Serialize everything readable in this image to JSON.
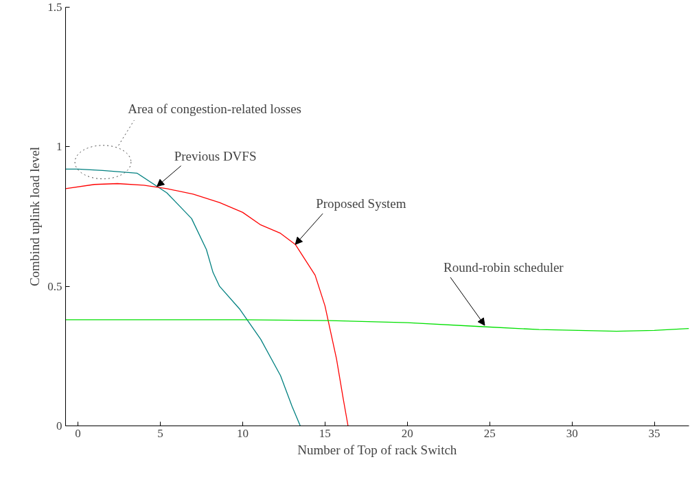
{
  "chart_data": {
    "type": "line",
    "xlabel": "Number of Top of rack Switch",
    "ylabel": "Combind uplink load level",
    "xlim": [
      -0.75,
      37.1
    ],
    "ylim": [
      0,
      1.5
    ],
    "xticks": [
      0,
      5,
      10,
      15,
      20,
      25,
      30,
      35
    ],
    "yticks": [
      0,
      0.5,
      1,
      1.5
    ],
    "grid": false,
    "marker": "none",
    "line_style": "solid",
    "series": [
      {
        "x": [
          -0.75,
          0,
          1.5,
          3.6,
          5.4,
          6.9,
          7.8,
          8.2,
          8.6,
          9.8,
          11.1,
          12.3,
          13,
          13.5
        ],
        "values": [
          0.92,
          0.92,
          0.915,
          0.905,
          0.835,
          0.743,
          0.632,
          0.55,
          0.5,
          0.42,
          0.31,
          0.18,
          0.07,
          0
        ],
        "color": "#008080"
      },
      {
        "x": [
          -0.75,
          1,
          2.4,
          4,
          5.4,
          7,
          8.6,
          10,
          11.1,
          12.3,
          13.2,
          14.4,
          15,
          15.7,
          16.1,
          16.4
        ],
        "values": [
          0.85,
          0.865,
          0.868,
          0.862,
          0.85,
          0.83,
          0.8,
          0.765,
          0.72,
          0.69,
          0.65,
          0.54,
          0.43,
          0.24,
          0.1,
          0
        ],
        "color": "#ff0000"
      },
      {
        "x": [
          -0.75,
          5,
          10,
          15.3,
          20,
          24.4,
          28,
          32.7,
          35,
          37.1
        ],
        "values": [
          0.38,
          0.38,
          0.38,
          0.377,
          0.37,
          0.356,
          0.345,
          0.339,
          0.342,
          0.349
        ],
        "color": "#00e000"
      }
    ],
    "annotations": [
      "Area of congestion-related losses",
      {
        "text": "Previous DVFS",
        "x": 4.8,
        "y": 0.858
      },
      {
        "text": "Proposed System",
        "x": 13.2,
        "y": 0.65
      },
      {
        "text": "Round-robin scheduler",
        "x": 24.7,
        "y": 0.36
      }
    ]
  }
}
